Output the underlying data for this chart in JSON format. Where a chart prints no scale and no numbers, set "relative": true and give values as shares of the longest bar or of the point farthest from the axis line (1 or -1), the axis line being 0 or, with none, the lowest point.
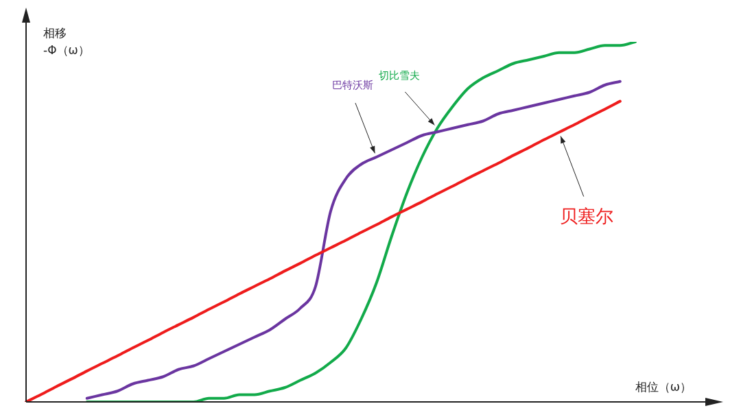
{
  "chart_data": {
    "type": "line",
    "relative": true,
    "xlabel": "相位（ω）",
    "ylabel": "相移\n-Φ（ω）",
    "legend": false,
    "marker": "none",
    "line_style": "solid",
    "categories": [
      null,
      null,
      null,
      null,
      null,
      null,
      null,
      null,
      null,
      null,
      null,
      null,
      null,
      null,
      null,
      null,
      null,
      null,
      null,
      null,
      null,
      null,
      null,
      null,
      null,
      null,
      null,
      null,
      null,
      null,
      null,
      null,
      null,
      null,
      null,
      null,
      null,
      null,
      null,
      null,
      null
    ],
    "series": [
      {
        "name": "贝塞尔",
        "color": "#ee1c1c",
        "values": [
          0,
          0.021,
          0.043,
          0.064,
          0.086,
          0.107,
          0.128,
          0.15,
          0.171,
          0.193,
          0.214,
          0.235,
          0.257,
          0.278,
          0.3,
          0.321,
          0.342,
          0.364,
          0.385,
          0.407,
          0.428,
          0.449,
          0.471,
          0.492,
          0.514,
          0.535,
          0.556,
          0.578,
          0.599,
          0.621,
          0.642,
          0.663,
          0.685,
          0.706,
          0.728,
          0.749,
          0.77,
          0.792,
          0.813,
          0.835,
          null
        ]
      },
      {
        "name": "巴特沃斯",
        "color": "#6a35a0",
        "values": [
          null,
          null,
          null,
          null,
          0.01,
          0.02,
          0.03,
          0.05,
          0.06,
          0.07,
          0.09,
          0.1,
          0.12,
          0.14,
          0.16,
          0.18,
          0.2,
          0.23,
          0.26,
          0.32,
          0.53,
          0.62,
          0.66,
          0.68,
          0.7,
          0.72,
          0.74,
          0.75,
          0.76,
          0.77,
          0.78,
          0.8,
          0.81,
          0.82,
          0.83,
          0.84,
          0.85,
          0.86,
          0.88,
          0.89,
          null
        ]
      },
      {
        "name": "切比雪夫",
        "color": "#12aa4a",
        "values": [
          null,
          null,
          null,
          null,
          0,
          0,
          0,
          0,
          0,
          0,
          0,
          0,
          0.01,
          0.01,
          0.02,
          0.02,
          0.03,
          0.04,
          0.06,
          0.08,
          0.11,
          0.15,
          0.23,
          0.33,
          0.46,
          0.58,
          0.68,
          0.76,
          0.82,
          0.87,
          0.9,
          0.92,
          0.94,
          0.95,
          0.96,
          0.97,
          0.97,
          0.98,
          0.99,
          0.99,
          1.0
        ]
      }
    ]
  }
}
